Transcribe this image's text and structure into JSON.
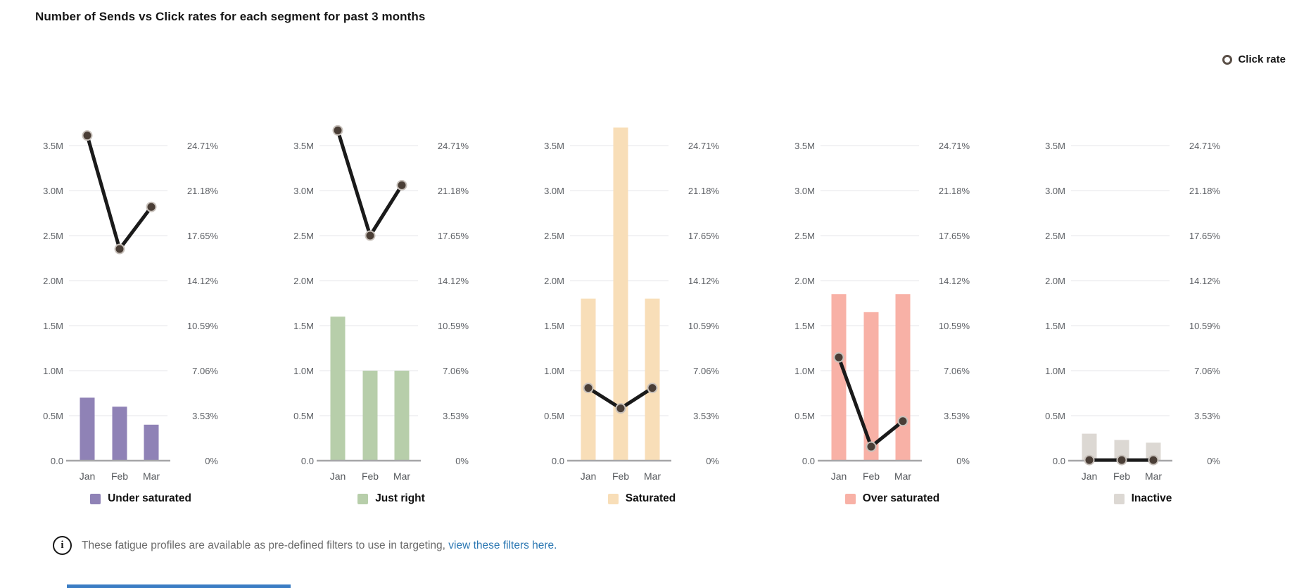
{
  "page_title": "Number of Sends vs Click rates for each segment for past 3 months",
  "series_legend": {
    "click_rate_label": "Click rate"
  },
  "axes": {
    "months": [
      "Jan",
      "Feb",
      "Mar"
    ],
    "left_ticks": [
      "0.0",
      "0.5M",
      "1.0M",
      "1.5M",
      "2.0M",
      "2.5M",
      "3.0M",
      "3.5M"
    ],
    "right_ticks": [
      "0%",
      "3.53%",
      "7.06%",
      "10.59%",
      "14.12%",
      "17.65%",
      "21.18%",
      "24.71%"
    ],
    "left_axis_lim_millions": [
      0,
      3.5
    ],
    "right_axis_lim_percent": [
      0,
      24.71
    ],
    "grid": true
  },
  "chart_data": [
    {
      "type": "bar",
      "title": "Under saturated",
      "categories": [
        "Jan",
        "Feb",
        "Mar"
      ],
      "series": [
        {
          "name": "Sends",
          "kind": "bar",
          "values_millions": [
            0.7,
            0.6,
            0.4
          ]
        },
        {
          "name": "Click rate",
          "kind": "line",
          "values_percent": [
            25.5,
            16.6,
            19.9
          ]
        }
      ],
      "bar_color": "#8f82b6"
    },
    {
      "type": "bar",
      "title": "Just right",
      "categories": [
        "Jan",
        "Feb",
        "Mar"
      ],
      "series": [
        {
          "name": "Sends",
          "kind": "bar",
          "values_millions": [
            1.6,
            1.0,
            1.0
          ]
        },
        {
          "name": "Click rate",
          "kind": "line",
          "values_percent": [
            25.9,
            17.65,
            21.6
          ]
        }
      ],
      "bar_color": "#b7ceaa"
    },
    {
      "type": "bar",
      "title": "Saturated",
      "categories": [
        "Jan",
        "Feb",
        "Mar"
      ],
      "series": [
        {
          "name": "Sends",
          "kind": "bar",
          "values_millions": [
            1.8,
            3.7,
            1.8
          ]
        },
        {
          "name": "Click rate",
          "kind": "line",
          "values_percent": [
            5.7,
            4.1,
            5.7
          ]
        }
      ],
      "bar_color": "#f8deb8"
    },
    {
      "type": "bar",
      "title": "Over saturated",
      "categories": [
        "Jan",
        "Feb",
        "Mar"
      ],
      "series": [
        {
          "name": "Sends",
          "kind": "bar",
          "values_millions": [
            1.85,
            1.65,
            1.85
          ]
        },
        {
          "name": "Click rate",
          "kind": "line",
          "values_percent": [
            8.1,
            1.1,
            3.1
          ]
        }
      ],
      "bar_color": "#f8b1a6"
    },
    {
      "type": "bar",
      "title": "Inactive",
      "categories": [
        "Jan",
        "Feb",
        "Mar"
      ],
      "series": [
        {
          "name": "Sends",
          "kind": "bar",
          "values_millions": [
            0.3,
            0.23,
            0.2
          ]
        },
        {
          "name": "Click rate",
          "kind": "line",
          "values_percent": [
            0.05,
            0.05,
            0.05
          ]
        }
      ],
      "bar_color": "#dcd8d3"
    }
  ],
  "note": {
    "text": "These fatigue profiles are available as pre-defined filters to use in targeting, ",
    "link_text": "view these filters here."
  },
  "colors": {
    "line": "#1a1a1a",
    "point_fill": "#4a3e36",
    "point_ring": "#c8c1bb",
    "gridline": "#ebebee",
    "baseline": "#a6a6a8",
    "tick_text": "#5c5f64",
    "link": "#2c78b3",
    "bottom_bar": "#3b7dc4"
  }
}
